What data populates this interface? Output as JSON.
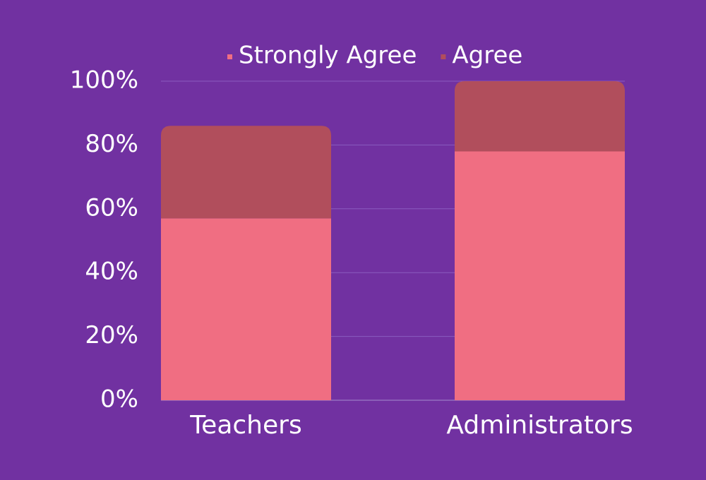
{
  "chart_data": {
    "type": "stacked_bar",
    "categories": [
      "Teachers",
      "Administrators"
    ],
    "series": [
      {
        "name": "Strongly Agree",
        "color": "#f06e82",
        "values": [
          57,
          78
        ]
      },
      {
        "name": "Agree",
        "color": "#b14e5c",
        "values": [
          29,
          22
        ]
      }
    ],
    "ylim": [
      0,
      100
    ],
    "yticks": [
      {
        "value": 0,
        "label": "0%"
      },
      {
        "value": 20,
        "label": "20%"
      },
      {
        "value": 40,
        "label": "40%"
      },
      {
        "value": 60,
        "label": "60%"
      },
      {
        "value": 80,
        "label": "80%"
      },
      {
        "value": 100,
        "label": "100%"
      }
    ],
    "grid": true,
    "legend": "top"
  }
}
